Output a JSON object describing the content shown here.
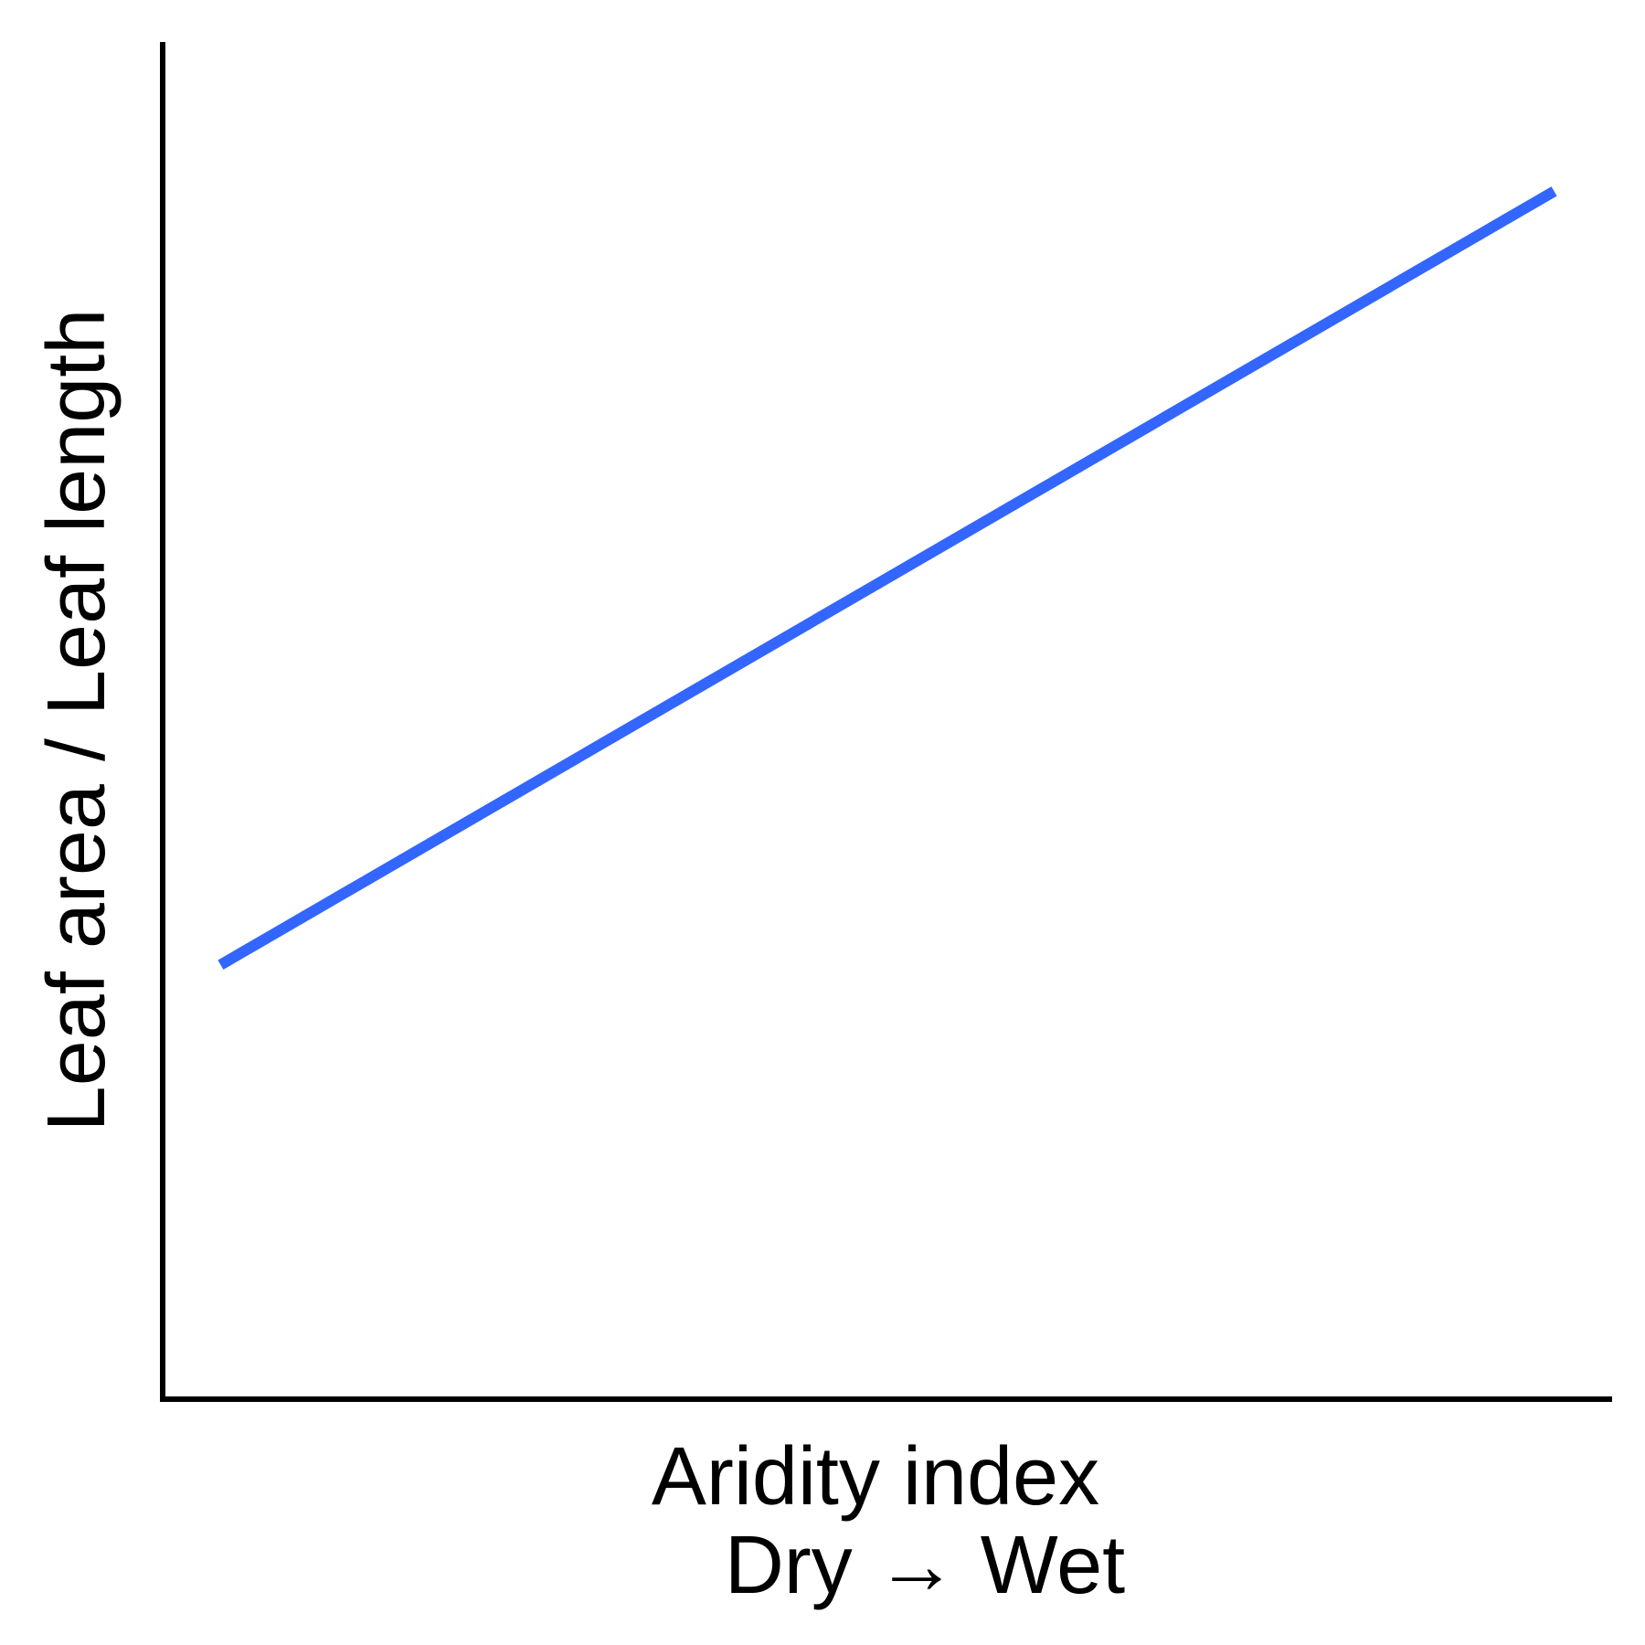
{
  "chart_data": {
    "type": "line",
    "title": "",
    "xlabel": "Aridity index",
    "xlabel_sub": "Dry → Wet",
    "ylabel": "Leaf area / Leaf length",
    "xlim": [
      0,
      1
    ],
    "ylim": [
      0,
      1
    ],
    "grid": false,
    "series": [
      {
        "x": [
          0.04,
          0.96
        ],
        "y": [
          0.32,
          0.89
        ],
        "color": "#3366ff"
      }
    ]
  }
}
